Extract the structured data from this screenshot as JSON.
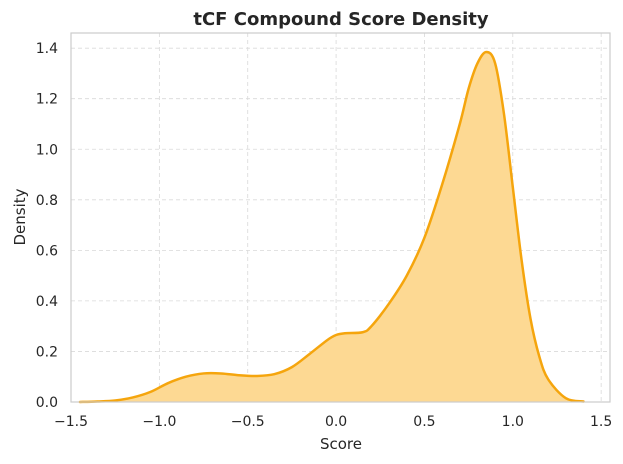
{
  "chart_data": {
    "type": "area",
    "title": "tCF Compound Score Density",
    "xlabel": "Score",
    "ylabel": "Density",
    "xlim": [
      -1.5,
      1.55
    ],
    "ylim": [
      0,
      1.46
    ],
    "xticks": [
      -1.5,
      -1.0,
      -0.5,
      0.0,
      0.5,
      1.0,
      1.5
    ],
    "xtick_labels": [
      "−1.5",
      "−1.0",
      "−0.5",
      "0.0",
      "0.5",
      "1.0",
      "1.5"
    ],
    "yticks": [
      0.0,
      0.2,
      0.4,
      0.6,
      0.8,
      1.0,
      1.2,
      1.4
    ],
    "ytick_labels": [
      "0.0",
      "0.2",
      "0.4",
      "0.6",
      "0.8",
      "1.0",
      "1.2",
      "1.4"
    ],
    "grid": true,
    "line_color": "#f5a50d",
    "fill_color": "#fdd993",
    "series": [
      {
        "x": [
          -1.45,
          -1.35,
          -1.25,
          -1.15,
          -1.05,
          -0.95,
          -0.85,
          -0.75,
          -0.65,
          -0.55,
          -0.45,
          -0.35,
          -0.25,
          -0.15,
          -0.05,
          0.0,
          0.05,
          0.15,
          0.2,
          0.3,
          0.4,
          0.5,
          0.6,
          0.7,
          0.75,
          0.8,
          0.85,
          0.9,
          0.95,
          1.0,
          1.05,
          1.1,
          1.15,
          1.2,
          1.3,
          1.4
        ],
        "y": [
          0.0,
          0.002,
          0.006,
          0.018,
          0.04,
          0.075,
          0.1,
          0.113,
          0.113,
          0.106,
          0.103,
          0.11,
          0.138,
          0.19,
          0.245,
          0.265,
          0.272,
          0.276,
          0.3,
          0.39,
          0.5,
          0.65,
          0.86,
          1.1,
          1.24,
          1.34,
          1.385,
          1.34,
          1.14,
          0.85,
          0.56,
          0.33,
          0.18,
          0.09,
          0.015,
          0.002
        ]
      }
    ]
  }
}
